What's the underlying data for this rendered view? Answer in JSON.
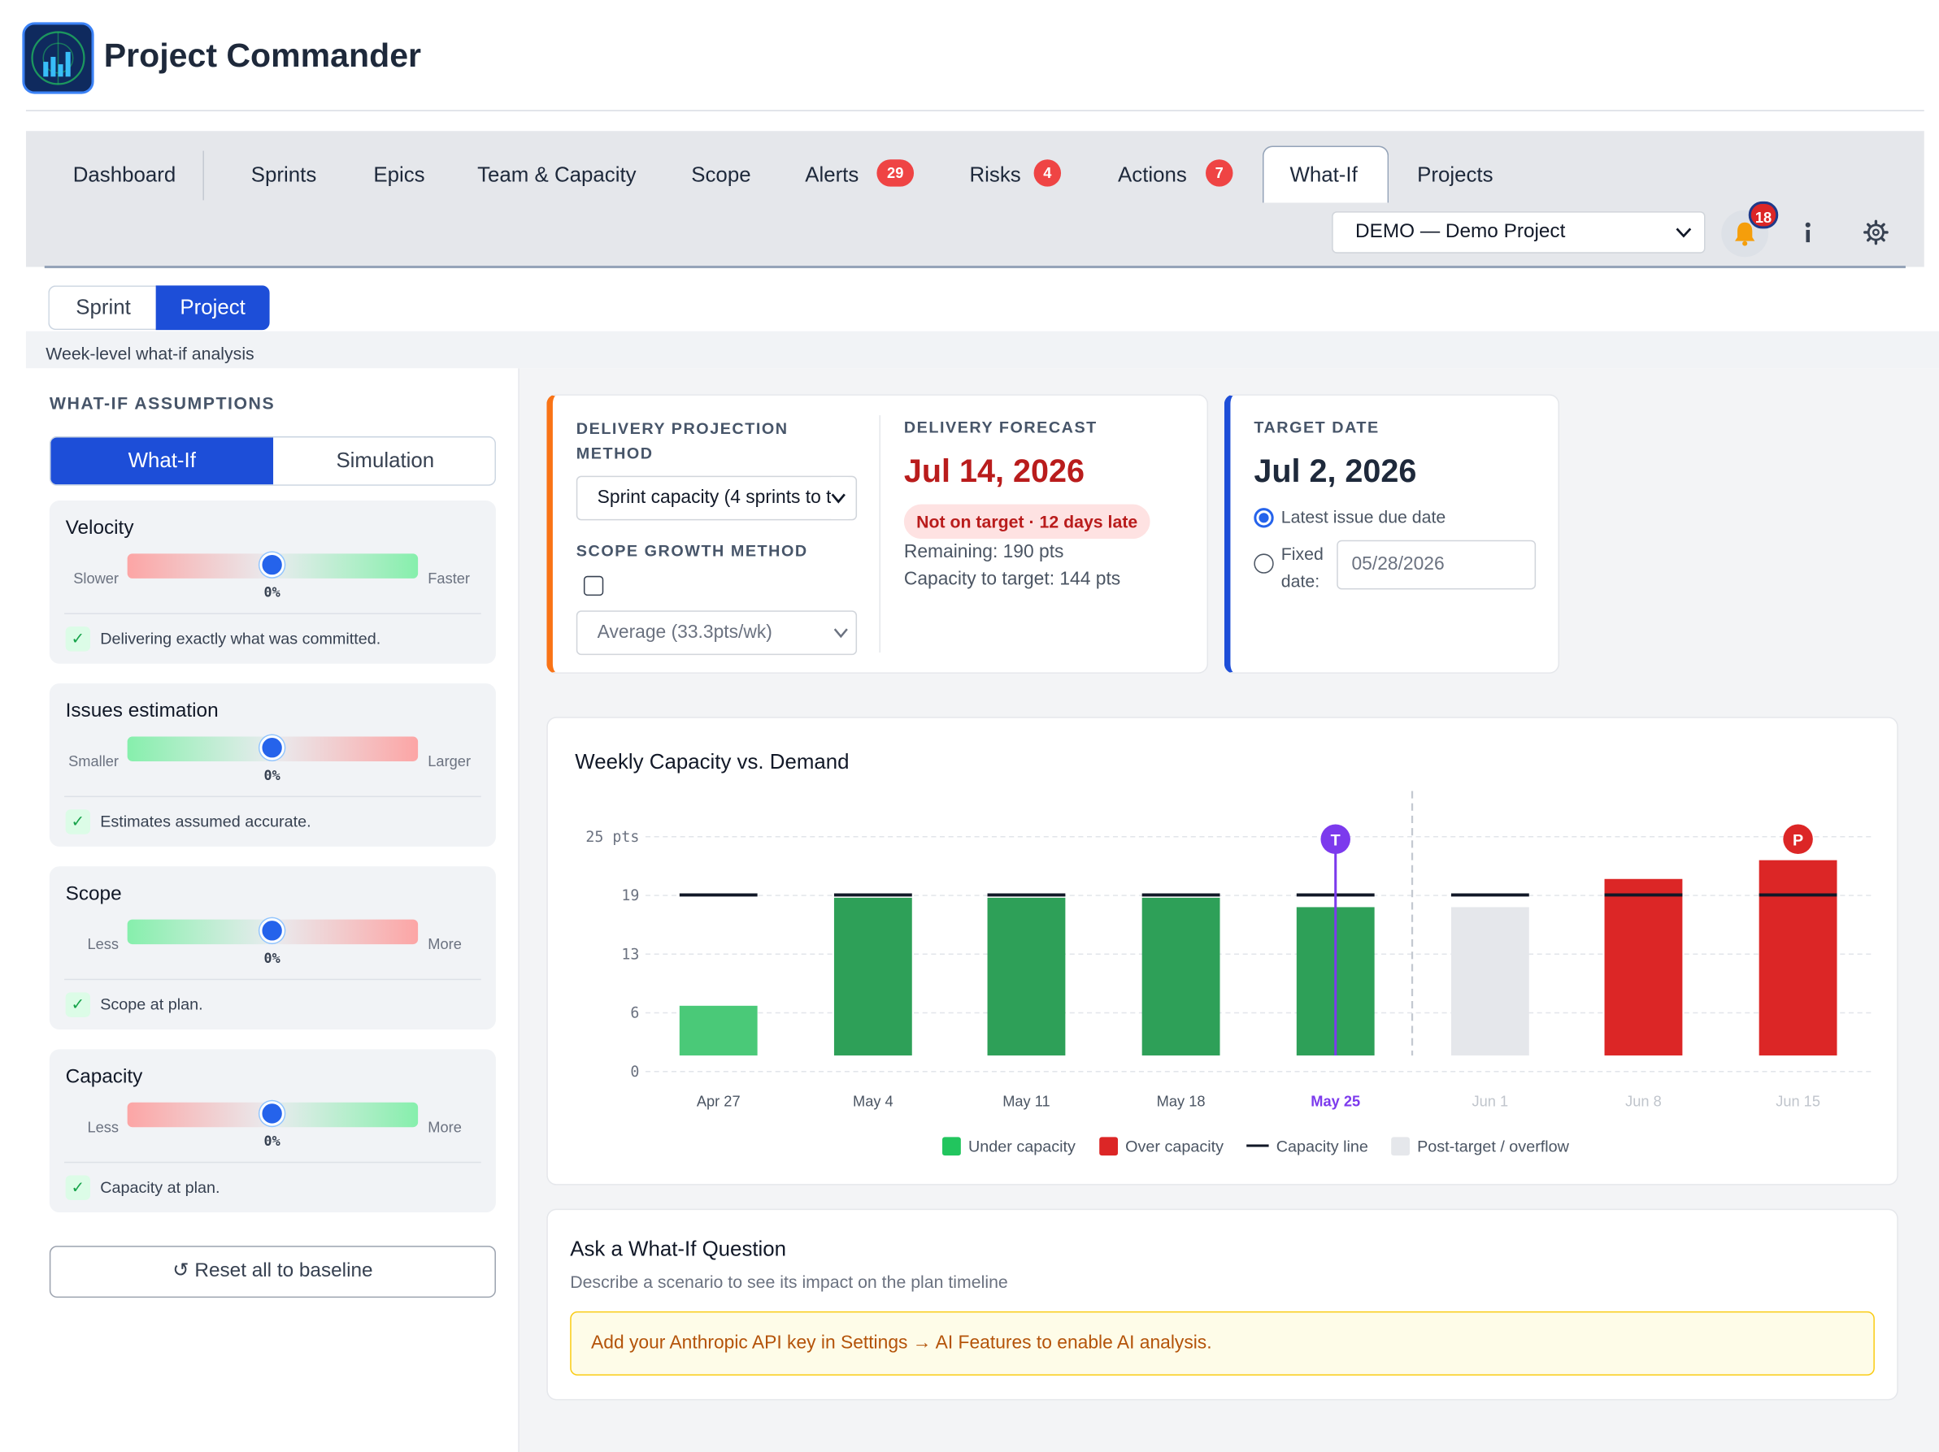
{
  "app": {
    "title": "Project Commander"
  },
  "nav": {
    "tabs": [
      {
        "label": "Dashboard"
      },
      {
        "label": "Sprints"
      },
      {
        "label": "Epics"
      },
      {
        "label": "Team & Capacity"
      },
      {
        "label": "Scope"
      },
      {
        "label": "Alerts",
        "badge": "29"
      },
      {
        "label": "Risks",
        "badge": "4"
      },
      {
        "label": "Actions",
        "badge": "7"
      },
      {
        "label": "What-If",
        "active": true
      },
      {
        "label": "Projects"
      }
    ],
    "project_select": "DEMO — Demo Project",
    "notifications_count": "18",
    "icons": [
      "bell-icon",
      "info-icon",
      "gear-icon"
    ]
  },
  "mode_toggle": {
    "sprint": "Sprint",
    "project": "Project",
    "selected": "Project"
  },
  "subtitle": "Week-level what-if analysis",
  "assumptions": {
    "heading": "WHAT-IF ASSUMPTIONS",
    "tabs": {
      "what_if": "What-If",
      "simulation": "Simulation",
      "selected": "What-If"
    },
    "cards": [
      {
        "title": "Velocity",
        "low": "Slower",
        "high": "Faster",
        "value": "0%",
        "level": 0,
        "note": "Delivering exactly what was committed."
      },
      {
        "title": "Issues estimation",
        "low": "Smaller",
        "high": "Larger",
        "value": "0%",
        "level": 0,
        "note": "Estimates assumed accurate."
      },
      {
        "title": "Scope",
        "low": "Less",
        "high": "More",
        "value": "0%",
        "level": 0,
        "note": "Scope at plan."
      },
      {
        "title": "Capacity",
        "low": "Less",
        "high": "More",
        "value": "0%",
        "level": 0,
        "note": "Capacity at plan."
      }
    ],
    "reset_label": "↺ Reset all to baseline"
  },
  "projection": {
    "method_label": "DELIVERY PROJECTION METHOD",
    "method_value": "Sprint capacity (4 sprints to t",
    "scope_label": "SCOPE GROWTH METHOD",
    "scope_checked": false,
    "scope_value": "Average (33.3pts/wk)",
    "forecast_label": "DELIVERY FORECAST",
    "forecast_date": "Jul 14, 2026",
    "status": "Not on target · 12 days late",
    "remaining": "Remaining: 190 pts",
    "capacity_to_target": "Capacity to target: 144 pts"
  },
  "target": {
    "label": "TARGET DATE",
    "date": "Jul 2, 2026",
    "option_latest": "Latest issue due date",
    "option_fixed_1": "Fixed",
    "option_fixed_2": "date:",
    "fixed_placeholder": "05/28/2026",
    "selected": "latest"
  },
  "chart_data": {
    "type": "bar",
    "title": "Weekly Capacity vs. Demand",
    "categories": [
      "Apr 27",
      "May 4",
      "May 11",
      "May 18",
      "May 25",
      "Jun 1",
      "Jun 8",
      "Jun 15"
    ],
    "demand": [
      7,
      18.5,
      18.5,
      18.5,
      17.5,
      17.5,
      20.5,
      22.5
    ],
    "capacity": [
      18.8,
      18.8,
      18.8,
      18.8,
      18.8,
      18.8,
      18.8,
      18.8
    ],
    "bar_kind": [
      "under-light",
      "under",
      "under",
      "under",
      "under",
      "post-target",
      "over",
      "over"
    ],
    "y_ticks": [
      "0",
      "6",
      "13",
      "19",
      "25 pts"
    ],
    "y_tick_values": [
      0,
      6.25,
      12.5,
      18.75,
      25
    ],
    "ylim": [
      0,
      25
    ],
    "target_marker": {
      "label": "T",
      "category": "May 25",
      "color": "#7c3aed"
    },
    "projection_marker": {
      "label": "P",
      "category": "Jun 15",
      "color": "#dc2626"
    },
    "highlight_category": "May 25",
    "faded_categories": [
      "Jun 1",
      "Jun 8",
      "Jun 15"
    ],
    "legend": [
      {
        "label": "Under capacity",
        "color": "#22c55e"
      },
      {
        "label": "Over capacity",
        "color": "#dc2626"
      },
      {
        "label": "Capacity line",
        "color": "#111827"
      },
      {
        "label": "Post-target / overflow",
        "color": "#e5e7eb"
      }
    ],
    "colors": {
      "under": "#2ea058",
      "under_light": "#4ac978",
      "over": "#dc2626",
      "post": "#e5e7eb",
      "capacity_line": "#111827"
    },
    "grid": true
  },
  "ask": {
    "title": "Ask a What-If Question",
    "subtitle": "Describe a scenario to see its impact on the plan timeline",
    "warning": "Add your Anthropic API key in Settings → AI Features to enable AI analysis."
  }
}
